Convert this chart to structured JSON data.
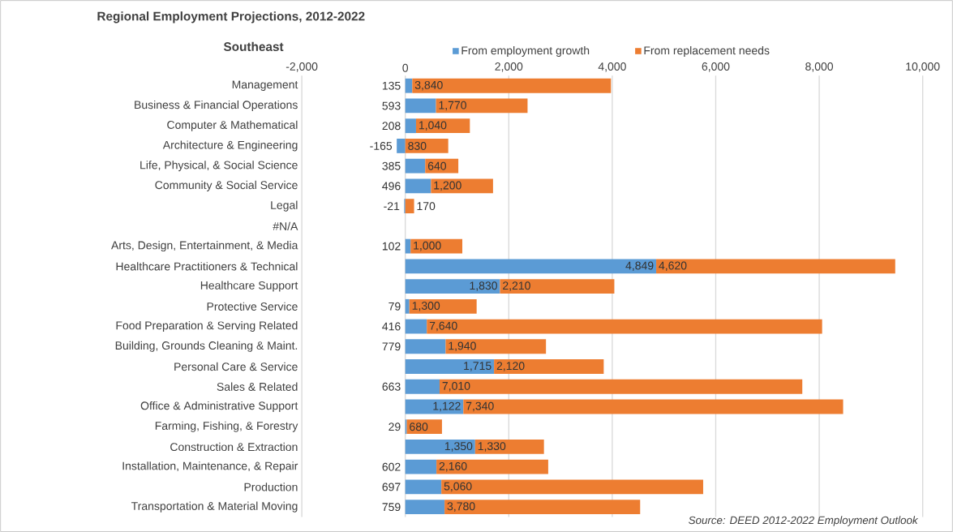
{
  "chart_data": {
    "type": "bar",
    "orientation": "horizontal",
    "stacked": true,
    "title": "Regional Employment Projections, 2012-2022",
    "subtitle": "Southeast",
    "categories": [
      "Management",
      "Business & Financial Operations",
      "Computer & Mathematical",
      "Architecture & Engineering",
      "Life, Physical, & Social Science",
      "Community & Social Service",
      "Legal",
      "#N/A",
      "Arts, Design, Entertainment, & Media",
      "Healthcare Practitioners & Technical",
      "Healthcare Support",
      "Protective Service",
      "Food Preparation & Serving Related",
      "Building, Grounds Cleaning & Maint.",
      "Personal Care & Service",
      "Sales & Related",
      "Office & Administrative Support",
      "Farming, Fishing, & Forestry",
      "Construction & Extraction",
      "Installation, Maintenance, & Repair",
      "Production",
      "Transportation & Material Moving"
    ],
    "series": [
      {
        "name": "From employment growth",
        "color": "#5b9bd5",
        "values": [
          135,
          593,
          208,
          -165,
          385,
          496,
          -21,
          null,
          102,
          4849,
          1830,
          79,
          416,
          779,
          1715,
          663,
          1122,
          29,
          1350,
          602,
          697,
          759
        ],
        "value_labels": [
          "135",
          "593",
          "208",
          "-165",
          "385",
          "496",
          "-21",
          null,
          "102",
          "4,849",
          "1,830",
          "79",
          "416",
          "779",
          "1,715",
          "663",
          "1,122",
          "29",
          "1,350",
          "602",
          "697",
          "759"
        ]
      },
      {
        "name": "From replacement needs",
        "color": "#ed7d31",
        "values": [
          3840,
          1770,
          1040,
          830,
          640,
          1200,
          170,
          null,
          1000,
          4620,
          2210,
          1300,
          7640,
          1940,
          2120,
          7010,
          7340,
          680,
          1330,
          2160,
          5060,
          3780
        ],
        "value_labels": [
          "3,840",
          "1,770",
          "1,040",
          "830",
          "640",
          "1,200",
          "170",
          null,
          "1,000",
          "4,620",
          "2,210",
          "1,300",
          "7,640",
          "1,940",
          "2,120",
          "7,010",
          "7,340",
          "680",
          "1,330",
          "2,160",
          "5,060",
          "3,780"
        ]
      }
    ],
    "xlim": [
      -2000,
      10000
    ],
    "xticks": [
      {
        "value": -2000,
        "label": "-2,000"
      },
      0,
      {
        "value": 2000,
        "label": "2,000"
      },
      {
        "value": 4000,
        "label": "4,000"
      },
      {
        "value": 6000,
        "label": "6,000"
      },
      {
        "value": 8000,
        "label": "8,000"
      },
      {
        "value": 10000,
        "label": "10,000"
      }
    ],
    "grid": "x",
    "legend": "top",
    "annotations": [
      "Source: DEED 2012-2022 Employment Outlook"
    ]
  }
}
